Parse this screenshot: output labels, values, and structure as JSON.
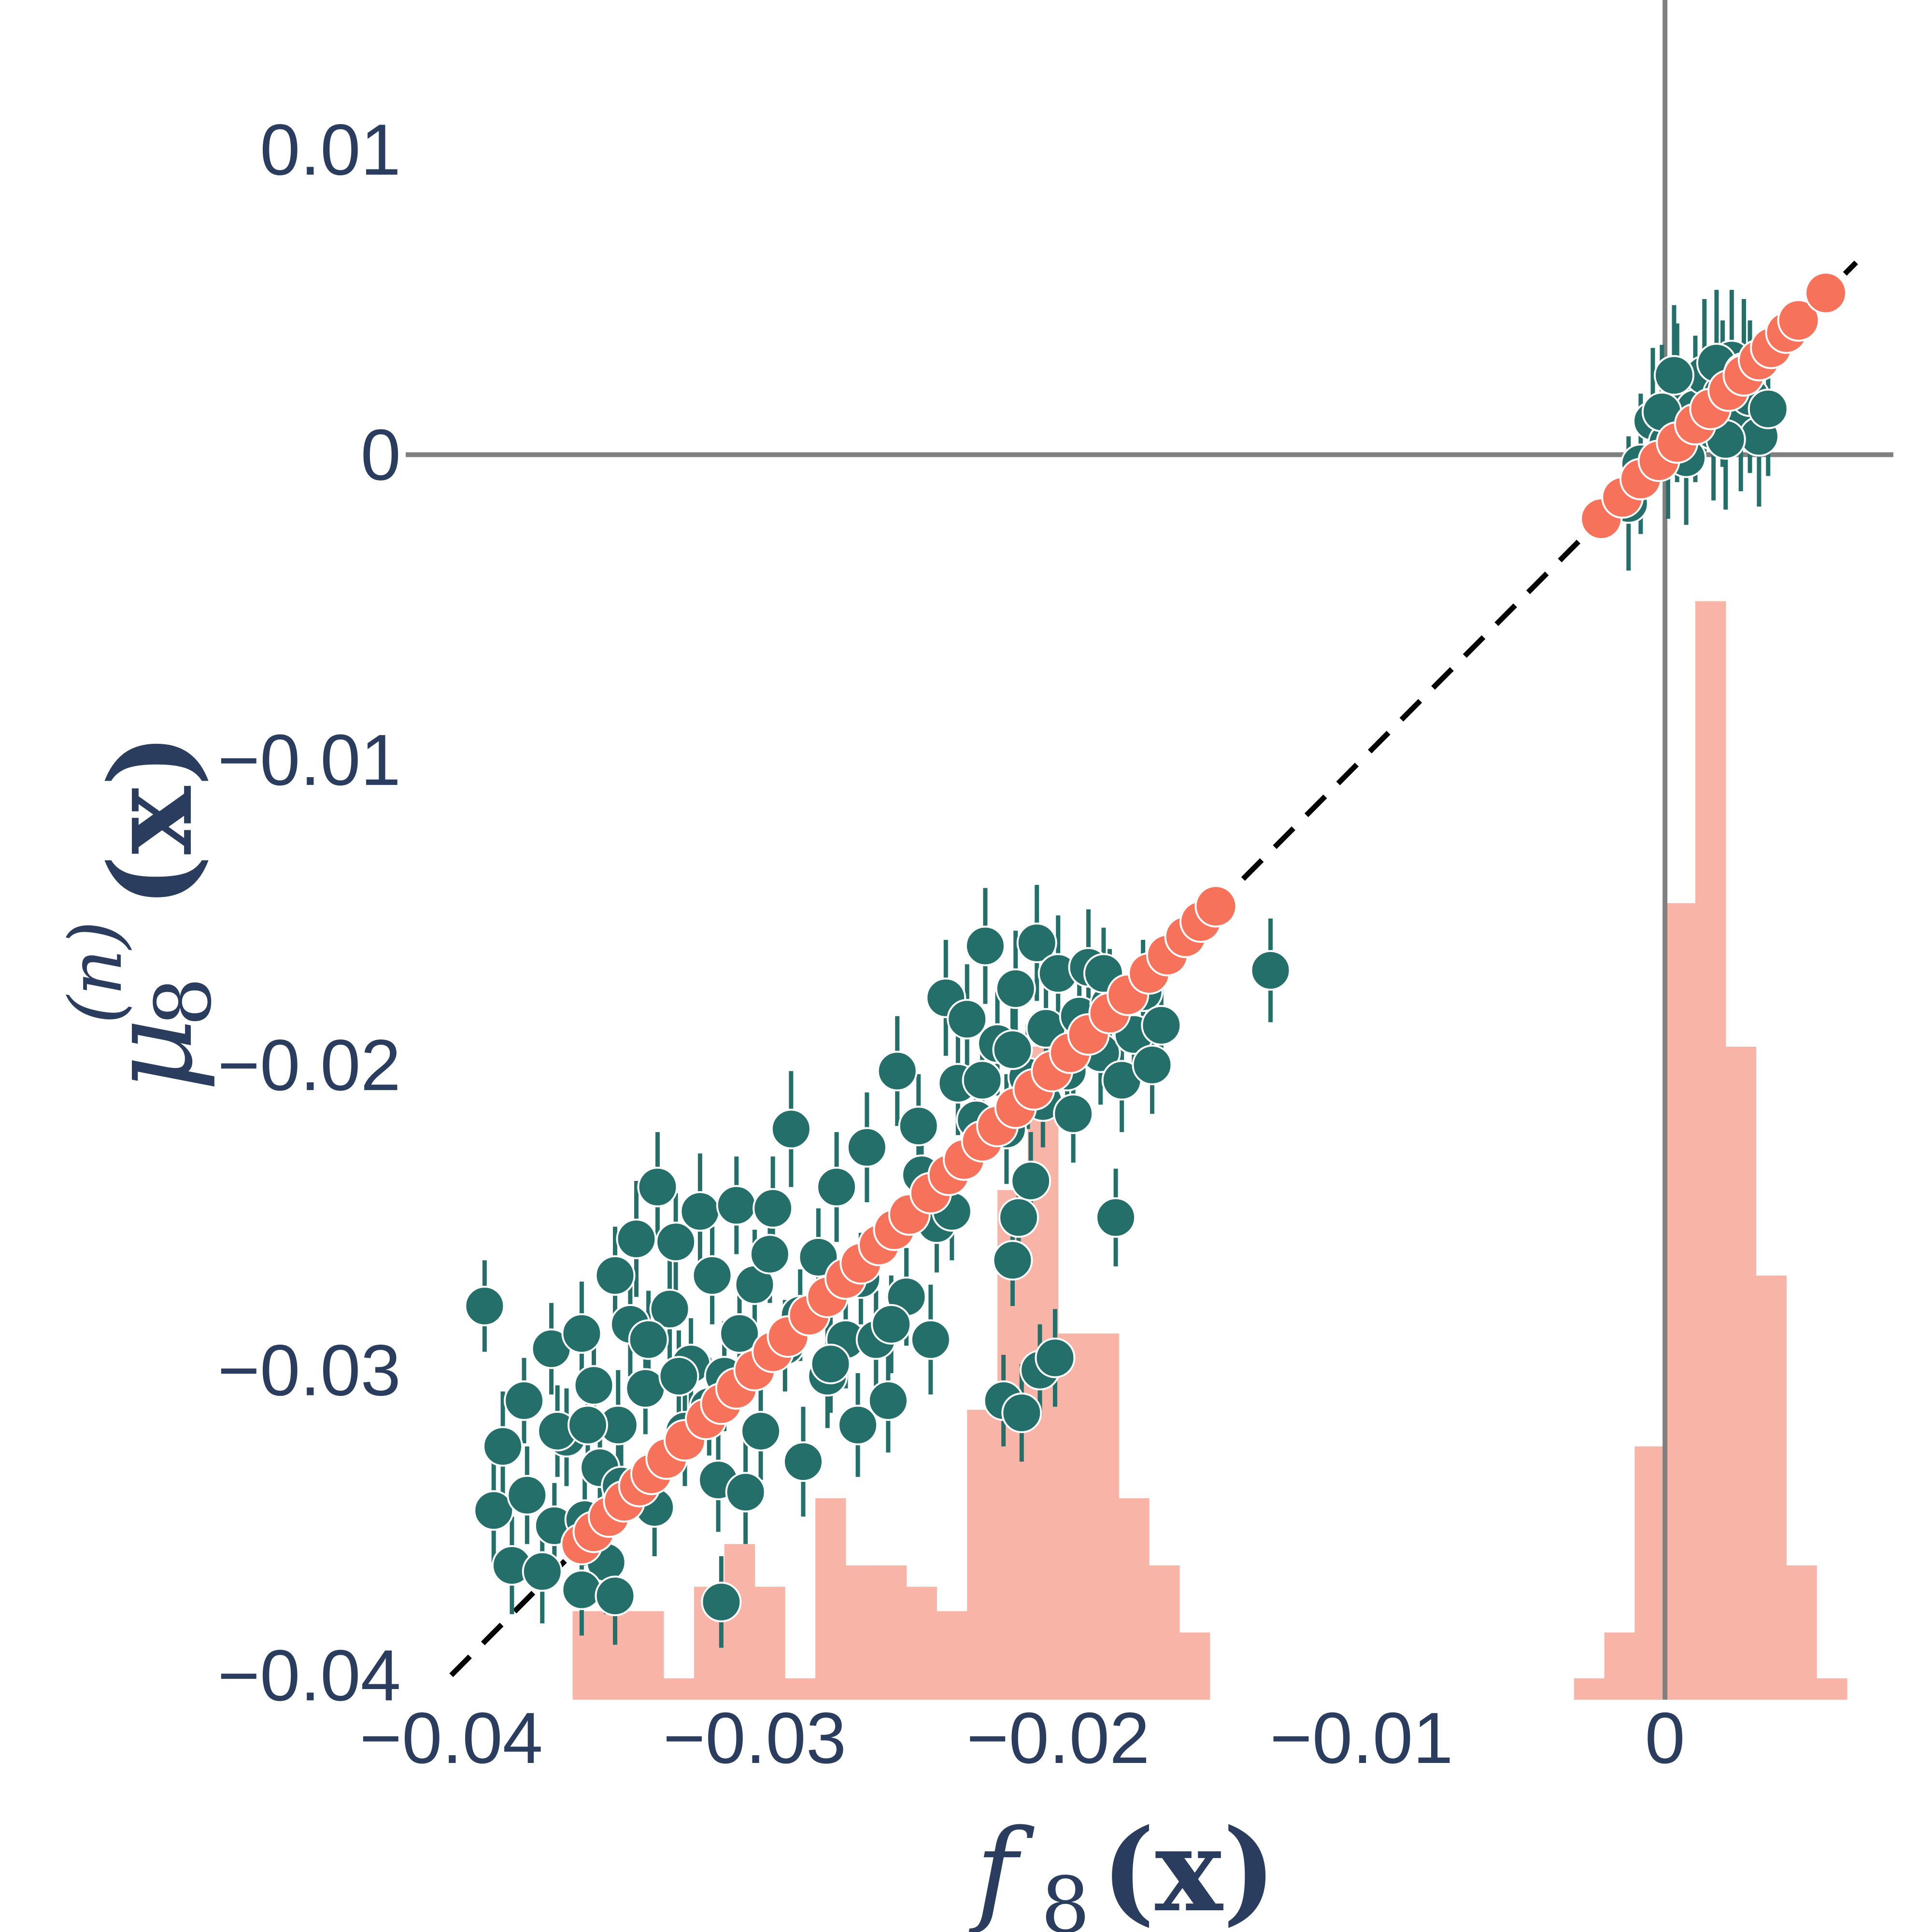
{
  "chart_data": {
    "type": "scatter",
    "title": "",
    "xlabel": {
      "base": "f",
      "sub": "8",
      "arg": "(x)"
    },
    "ylabel": {
      "base": "μ",
      "sub": "8",
      "sup": "(n)",
      "arg": "(x)"
    },
    "xlim": [
      -0.0415,
      0.0088
    ],
    "ylim": [
      -0.0405,
      0.0149
    ],
    "x_ticks": [
      {
        "value": -0.04,
        "label": "−0.04"
      },
      {
        "value": -0.03,
        "label": "−0.03"
      },
      {
        "value": -0.02,
        "label": "−0.02"
      },
      {
        "value": -0.01,
        "label": "−0.01"
      },
      {
        "value": 0,
        "label": "0"
      }
    ],
    "y_ticks": [
      {
        "value": 0.01,
        "label": "0.01"
      },
      {
        "value": 0,
        "label": "0"
      },
      {
        "value": -0.01,
        "label": "−0.01"
      },
      {
        "value": -0.02,
        "label": "−0.02"
      },
      {
        "value": -0.03,
        "label": "−0.03"
      },
      {
        "value": -0.04,
        "label": "−0.04"
      }
    ],
    "grid": false,
    "legend": "none",
    "reference_lines": {
      "x_zero": 0,
      "y_zero": 0,
      "identity": [
        -0.04,
        0.0063
      ]
    },
    "colors": {
      "predicted": "#256f6b",
      "target": "#f7725a",
      "histogram": "#f8b4a7",
      "zero_lines": "#808080",
      "identity": "#000000",
      "text": "#2b3d5e"
    },
    "histogram": {
      "baseline_y": -0.0408,
      "bins": [
        {
          "x0": -0.036,
          "x1": -0.035,
          "height": 0.0029
        },
        {
          "x0": -0.035,
          "x1": -0.034,
          "height": 0.0029
        },
        {
          "x0": -0.034,
          "x1": -0.033,
          "height": 0.0029
        },
        {
          "x0": -0.033,
          "x1": -0.032,
          "height": 0.0007
        },
        {
          "x0": -0.032,
          "x1": -0.031,
          "height": 0.0037
        },
        {
          "x0": -0.031,
          "x1": -0.03,
          "height": 0.0051
        },
        {
          "x0": -0.03,
          "x1": -0.029,
          "height": 0.0037
        },
        {
          "x0": -0.029,
          "x1": -0.028,
          "height": 0.0007
        },
        {
          "x0": -0.028,
          "x1": -0.027,
          "height": 0.0066
        },
        {
          "x0": -0.027,
          "x1": -0.026,
          "height": 0.0044
        },
        {
          "x0": -0.026,
          "x1": -0.025,
          "height": 0.0044
        },
        {
          "x0": -0.025,
          "x1": -0.024,
          "height": 0.0037
        },
        {
          "x0": -0.024,
          "x1": -0.023,
          "height": 0.0029
        },
        {
          "x0": -0.023,
          "x1": -0.022,
          "height": 0.0095
        },
        {
          "x0": -0.022,
          "x1": -0.021,
          "height": 0.0167
        },
        {
          "x0": -0.021,
          "x1": -0.02,
          "height": 0.0214
        },
        {
          "x0": -0.02,
          "x1": -0.019,
          "height": 0.012
        },
        {
          "x0": -0.019,
          "x1": -0.018,
          "height": 0.012
        },
        {
          "x0": -0.018,
          "x1": -0.017,
          "height": 0.0066
        },
        {
          "x0": -0.017,
          "x1": -0.016,
          "height": 0.0044
        },
        {
          "x0": -0.016,
          "x1": -0.015,
          "height": 0.0022
        },
        {
          "x0": -0.003,
          "x1": -0.002,
          "height": 0.0007
        },
        {
          "x0": -0.002,
          "x1": -0.001,
          "height": 0.0022
        },
        {
          "x0": -0.001,
          "x1": 0.0,
          "height": 0.0083
        },
        {
          "x0": 0.0,
          "x1": 0.001,
          "height": 0.0261
        },
        {
          "x0": 0.001,
          "x1": 0.002,
          "height": 0.036
        },
        {
          "x0": 0.002,
          "x1": 0.003,
          "height": 0.0214
        },
        {
          "x0": 0.003,
          "x1": 0.004,
          "height": 0.0139
        },
        {
          "x0": 0.004,
          "x1": 0.005,
          "height": 0.0044
        },
        {
          "x0": 0.005,
          "x1": 0.006,
          "height": 0.0007
        }
      ]
    },
    "target_points": [
      [
        -0.0357,
        -0.0357
      ],
      [
        -0.0353,
        -0.0353
      ],
      [
        -0.0348,
        -0.0348
      ],
      [
        -0.0343,
        -0.0343
      ],
      [
        -0.0338,
        -0.0338
      ],
      [
        -0.0334,
        -0.0334
      ],
      [
        -0.0329,
        -0.0329
      ],
      [
        -0.0323,
        -0.0323
      ],
      [
        -0.0316,
        -0.0316
      ],
      [
        -0.0311,
        -0.0311
      ],
      [
        -0.0306,
        -0.0306
      ],
      [
        -0.03,
        -0.03
      ],
      [
        -0.0294,
        -0.0294
      ],
      [
        -0.0289,
        -0.0289
      ],
      [
        -0.0282,
        -0.0282
      ],
      [
        -0.0276,
        -0.0276
      ],
      [
        -0.027,
        -0.027
      ],
      [
        -0.0265,
        -0.0265
      ],
      [
        -0.0259,
        -0.0259
      ],
      [
        -0.0254,
        -0.0254
      ],
      [
        -0.0249,
        -0.0249
      ],
      [
        -0.0242,
        -0.0242
      ],
      [
        -0.0236,
        -0.0236
      ],
      [
        -0.0231,
        -0.0231
      ],
      [
        -0.0225,
        -0.0225
      ],
      [
        -0.022,
        -0.022
      ],
      [
        -0.0214,
        -0.0214
      ],
      [
        -0.0208,
        -0.0208
      ],
      [
        -0.0202,
        -0.0202
      ],
      [
        -0.0196,
        -0.0196
      ],
      [
        -0.019,
        -0.019
      ],
      [
        -0.0183,
        -0.0183
      ],
      [
        -0.0177,
        -0.0177
      ],
      [
        -0.017,
        -0.017
      ],
      [
        -0.0164,
        -0.0164
      ],
      [
        -0.0158,
        -0.0158
      ],
      [
        -0.0153,
        -0.0153
      ],
      [
        -0.0148,
        -0.0148
      ],
      [
        -0.0021,
        -0.0021
      ],
      [
        -0.0014,
        -0.0014
      ],
      [
        -0.0008,
        -0.0008
      ],
      [
        -0.0002,
        -0.0002
      ],
      [
        0.0004,
        0.0004
      ],
      [
        0.001,
        0.001
      ],
      [
        0.0015,
        0.0015
      ],
      [
        0.0021,
        0.0021
      ],
      [
        0.0026,
        0.0026
      ],
      [
        0.0031,
        0.0031
      ],
      [
        0.0035,
        0.0035
      ],
      [
        0.004,
        0.004
      ],
      [
        0.0044,
        0.0044
      ],
      [
        0.0053,
        0.0053
      ]
    ],
    "predicted_points": [
      [
        -0.0389,
        -0.0279,
        0.0015
      ],
      [
        -0.0386,
        -0.0346,
        0.0017
      ],
      [
        -0.0383,
        -0.0325,
        0.0018
      ],
      [
        -0.038,
        -0.0364,
        0.0016
      ],
      [
        -0.0376,
        -0.031,
        0.0014
      ],
      [
        -0.037,
        -0.0366,
        0.0017
      ],
      [
        -0.0366,
        -0.0351,
        0.0014
      ],
      [
        -0.0367,
        -0.0293,
        0.0015
      ],
      [
        -0.0362,
        -0.0322,
        0.0016
      ],
      [
        -0.0357,
        -0.0288,
        0.0017
      ],
      [
        -0.0353,
        -0.0305,
        0.0018
      ],
      [
        -0.0356,
        -0.0349,
        0.0015
      ],
      [
        -0.0349,
        -0.0363,
        0.0017
      ],
      [
        -0.0351,
        -0.0332,
        0.0016
      ],
      [
        -0.0345,
        -0.0318,
        0.0018
      ],
      [
        -0.0346,
        -0.0269,
        0.0016
      ],
      [
        -0.0341,
        -0.0285,
        0.0017
      ],
      [
        -0.0339,
        -0.0257,
        0.0019
      ],
      [
        -0.0336,
        -0.0306,
        0.0015
      ],
      [
        -0.0333,
        -0.0345,
        0.0016
      ],
      [
        -0.0332,
        -0.024,
        0.0018
      ],
      [
        -0.0328,
        -0.028,
        0.0017
      ],
      [
        -0.0326,
        -0.0258,
        0.0016
      ],
      [
        -0.0323,
        -0.032,
        0.0018
      ],
      [
        -0.0321,
        -0.0298,
        0.0015
      ],
      [
        -0.0318,
        -0.0248,
        0.0019
      ],
      [
        -0.0314,
        -0.0269,
        0.0016
      ],
      [
        -0.0312,
        -0.0336,
        0.0017
      ],
      [
        -0.031,
        -0.0302,
        0.0018
      ],
      [
        -0.0306,
        -0.0246,
        0.0016
      ],
      [
        -0.0303,
        -0.034,
        0.0017
      ],
      [
        -0.03,
        -0.0272,
        0.0018
      ],
      [
        -0.0298,
        -0.032,
        0.0016
      ],
      [
        -0.0294,
        -0.0247,
        0.0017
      ],
      [
        -0.029,
        -0.0292,
        0.0015
      ],
      [
        -0.0288,
        -0.0221,
        0.0019
      ],
      [
        -0.0284,
        -0.033,
        0.0018
      ],
      [
        -0.0279,
        -0.0263,
        0.0016
      ],
      [
        -0.0276,
        -0.0302,
        0.0017
      ],
      [
        -0.0273,
        -0.024,
        0.0018
      ],
      [
        -0.027,
        -0.029,
        0.0016
      ],
      [
        -0.0266,
        -0.0318,
        0.0017
      ],
      [
        -0.0263,
        -0.0227,
        0.0018
      ],
      [
        -0.026,
        -0.029,
        0.0016
      ],
      [
        -0.0256,
        -0.031,
        0.0017
      ],
      [
        -0.0253,
        -0.0202,
        0.0018
      ],
      [
        -0.025,
        -0.0276,
        0.0016
      ],
      [
        -0.0246,
        -0.022,
        0.0017
      ],
      [
        -0.0242,
        -0.029,
        0.0018
      ],
      [
        -0.024,
        -0.0252,
        0.0016
      ],
      [
        -0.0237,
        -0.0178,
        0.0019
      ],
      [
        -0.0233,
        -0.0206,
        0.0017
      ],
      [
        -0.023,
        -0.0185,
        0.0018
      ],
      [
        -0.0227,
        -0.0218,
        0.0016
      ],
      [
        -0.0224,
        -0.0161,
        0.0019
      ],
      [
        -0.022,
        -0.0193,
        0.0017
      ],
      [
        -0.0217,
        -0.0221,
        0.0018
      ],
      [
        -0.0214,
        -0.0175,
        0.0019
      ],
      [
        -0.021,
        -0.0204,
        0.0017
      ],
      [
        -0.0207,
        -0.016,
        0.0019
      ],
      [
        -0.0204,
        -0.0188,
        0.0018
      ],
      [
        -0.02,
        -0.017,
        0.0019
      ],
      [
        -0.0197,
        -0.0202,
        0.0017
      ],
      [
        -0.0193,
        -0.0184,
        0.0018
      ],
      [
        -0.019,
        -0.0168,
        0.0019
      ],
      [
        -0.0186,
        -0.0196,
        0.0017
      ],
      [
        -0.0183,
        -0.018,
        0.0018
      ],
      [
        -0.0179,
        -0.0205,
        0.0017
      ],
      [
        -0.0175,
        -0.019,
        0.0018
      ],
      [
        -0.0172,
        -0.0176,
        0.0017
      ],
      [
        -0.0169,
        -0.02,
        0.0016
      ],
      [
        -0.0166,
        -0.0187,
        0.0017
      ],
      [
        -0.0181,
        -0.025,
        0.0016
      ],
      [
        -0.013,
        -0.0169,
        0.0017
      ],
      [
        -0.0375,
        -0.0341,
        0.0016
      ],
      [
        -0.0365,
        -0.032,
        0.0015
      ],
      [
        -0.0355,
        -0.0318,
        0.0016
      ],
      [
        -0.0344,
        -0.0338,
        0.0015
      ],
      [
        -0.0335,
        -0.029,
        0.0016
      ],
      [
        -0.0325,
        -0.0302,
        0.0015
      ],
      [
        -0.0315,
        -0.0312,
        0.0016
      ],
      [
        -0.0305,
        -0.0288,
        0.0015
      ],
      [
        -0.0295,
        -0.0262,
        0.0016
      ],
      [
        -0.0285,
        -0.0282,
        0.0015
      ],
      [
        -0.0275,
        -0.0298,
        0.0016
      ],
      [
        -0.0265,
        -0.027,
        0.0015
      ],
      [
        -0.0255,
        -0.0285,
        0.0016
      ],
      [
        -0.0245,
        -0.0236,
        0.0015
      ],
      [
        -0.0235,
        -0.0248,
        0.0016
      ],
      [
        -0.0225,
        -0.0205,
        0.0015
      ],
      [
        -0.0215,
        -0.0195,
        0.0016
      ],
      [
        -0.0205,
        -0.0212,
        0.0015
      ],
      [
        -0.0195,
        -0.0216,
        0.0016
      ],
      [
        -0.0185,
        -0.017,
        0.0015
      ],
      [
        -0.0218,
        -0.031,
        0.0015
      ],
      [
        -0.0212,
        -0.0314,
        0.0016
      ],
      [
        -0.0206,
        -0.03,
        0.0015
      ],
      [
        -0.0201,
        -0.0296,
        0.0016
      ],
      [
        -0.0213,
        -0.025,
        0.0015
      ],
      [
        -0.0209,
        -0.0238,
        0.0016
      ],
      [
        -0.0215,
        -0.0264,
        0.0015
      ],
      [
        -0.0357,
        -0.0372,
        0.0015
      ],
      [
        -0.0346,
        -0.0374,
        0.0016
      ],
      [
        -0.0311,
        -0.0376,
        0.0015
      ],
      [
        -0.0012,
        -0.0016,
        0.0022
      ],
      [
        -0.0008,
        -0.0003,
        0.0023
      ],
      [
        -0.0004,
        0.0011,
        0.0024
      ],
      [
        0.0001,
        0.0004,
        0.0025
      ],
      [
        0.0004,
        0.0017,
        0.0026
      ],
      [
        0.0007,
        -0.0001,
        0.0022
      ],
      [
        0.001,
        0.0015,
        0.0024
      ],
      [
        0.0013,
        0.0026,
        0.0025
      ],
      [
        0.0016,
        0.0008,
        0.0023
      ],
      [
        0.0019,
        0.002,
        0.0024
      ],
      [
        0.0022,
        0.0031,
        0.0023
      ],
      [
        0.0025,
        0.0012,
        0.0024
      ],
      [
        0.0028,
        0.0019,
        0.0025
      ],
      [
        0.0031,
        0.0006,
        0.0023
      ],
      [
        0.0034,
        0.0015,
        0.0022
      ],
      [
        0.0003,
        0.0026,
        0.0023
      ],
      [
        0.0017,
        0.003,
        0.0024
      ],
      [
        -0.0001,
        0.0014,
        0.0022
      ],
      [
        0.002,
        0.0005,
        0.0023
      ],
      [
        0.0026,
        0.0027,
        0.0024
      ]
    ]
  }
}
